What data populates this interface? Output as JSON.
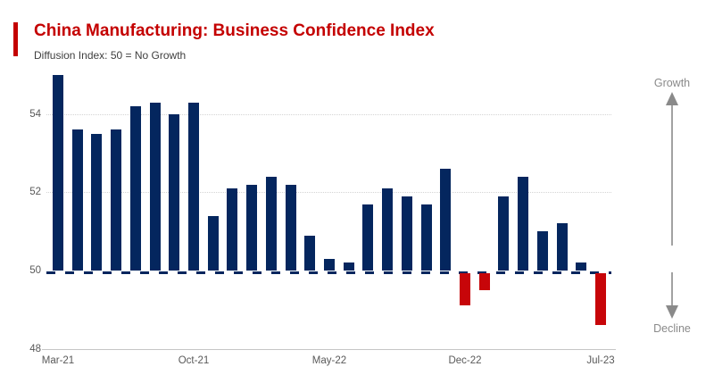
{
  "header": {
    "title": "China Manufacturing: Business Confidence Index",
    "subtitle": "Diffusion Index: 50 = No Growth"
  },
  "annotations": {
    "growth_label": "Growth",
    "decline_label": "Decline"
  },
  "colors": {
    "title_red": "#c40000",
    "accent_red": "#c40000",
    "bar_positive_navy": "#04265e",
    "bar_negative_red": "#c70509",
    "gridline_gray": "#d4d4d4",
    "axis_text_gray": "#595959",
    "annotation_gray": "#8a8a8a"
  },
  "chart_data": {
    "type": "bar",
    "title": "China Manufacturing: Business Confidence Index",
    "subtitle": "Diffusion Index: 50 = No Growth",
    "categories": [
      "Mar-21",
      "Apr-21",
      "May-21",
      "Jun-21",
      "Jul-21",
      "Aug-21",
      "Sep-21",
      "Oct-21",
      "Nov-21",
      "Dec-21",
      "Jan-22",
      "Feb-22",
      "Mar-22",
      "Apr-22",
      "May-22",
      "Jun-22",
      "Jul-22",
      "Aug-22",
      "Sep-22",
      "Oct-22",
      "Nov-22",
      "Dec-22",
      "Jan-23",
      "Feb-23",
      "Mar-23",
      "Apr-23",
      "May-23",
      "Jun-23",
      "Jul-23"
    ],
    "values": [
      55.0,
      53.6,
      53.5,
      53.6,
      54.2,
      54.3,
      54.0,
      54.3,
      51.4,
      52.1,
      52.2,
      52.4,
      52.2,
      50.9,
      50.3,
      50.2,
      51.7,
      52.1,
      51.9,
      51.7,
      52.6,
      49.1,
      49.5,
      51.9,
      52.4,
      51.0,
      51.2,
      50.2,
      48.6
    ],
    "baseline": 50,
    "ylim": [
      48,
      55.1
    ],
    "yticks": [
      54,
      52,
      50,
      48
    ],
    "xticks_shown": [
      "Mar-21",
      "Oct-21",
      "May-22",
      "Dec-22",
      "Jul-23"
    ],
    "xlabel": "",
    "ylabel": "",
    "legend": "none",
    "grid": "horizontal dotted gridlines at 52 and 54; navy dashed baseline at 50; solid axis line at 48",
    "positive_color": "#04265e",
    "negative_color": "#c70509"
  }
}
